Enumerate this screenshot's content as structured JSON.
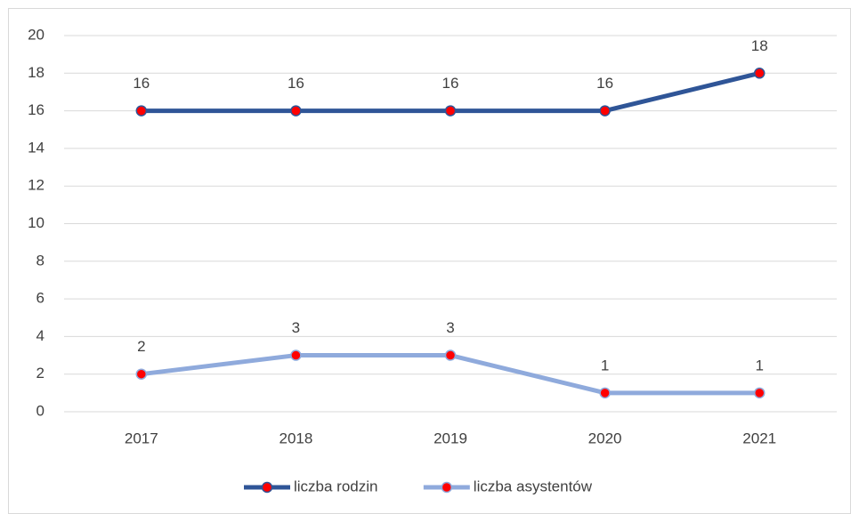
{
  "chart_data": {
    "type": "line",
    "categories": [
      "2017",
      "2018",
      "2019",
      "2020",
      "2021"
    ],
    "series": [
      {
        "name": "liczba rodzin",
        "color": "#2f5597",
        "values": [
          16,
          16,
          16,
          16,
          18
        ]
      },
      {
        "name": "liczba asystentów",
        "color": "#8faadc",
        "values": [
          2,
          3,
          3,
          1,
          1
        ]
      }
    ],
    "marker_color": "#ff0000",
    "ylim": [
      0,
      20
    ],
    "yticks": [
      0,
      2,
      4,
      6,
      8,
      10,
      12,
      14,
      16,
      18,
      20
    ],
    "grid": true,
    "legend": "bottom"
  }
}
